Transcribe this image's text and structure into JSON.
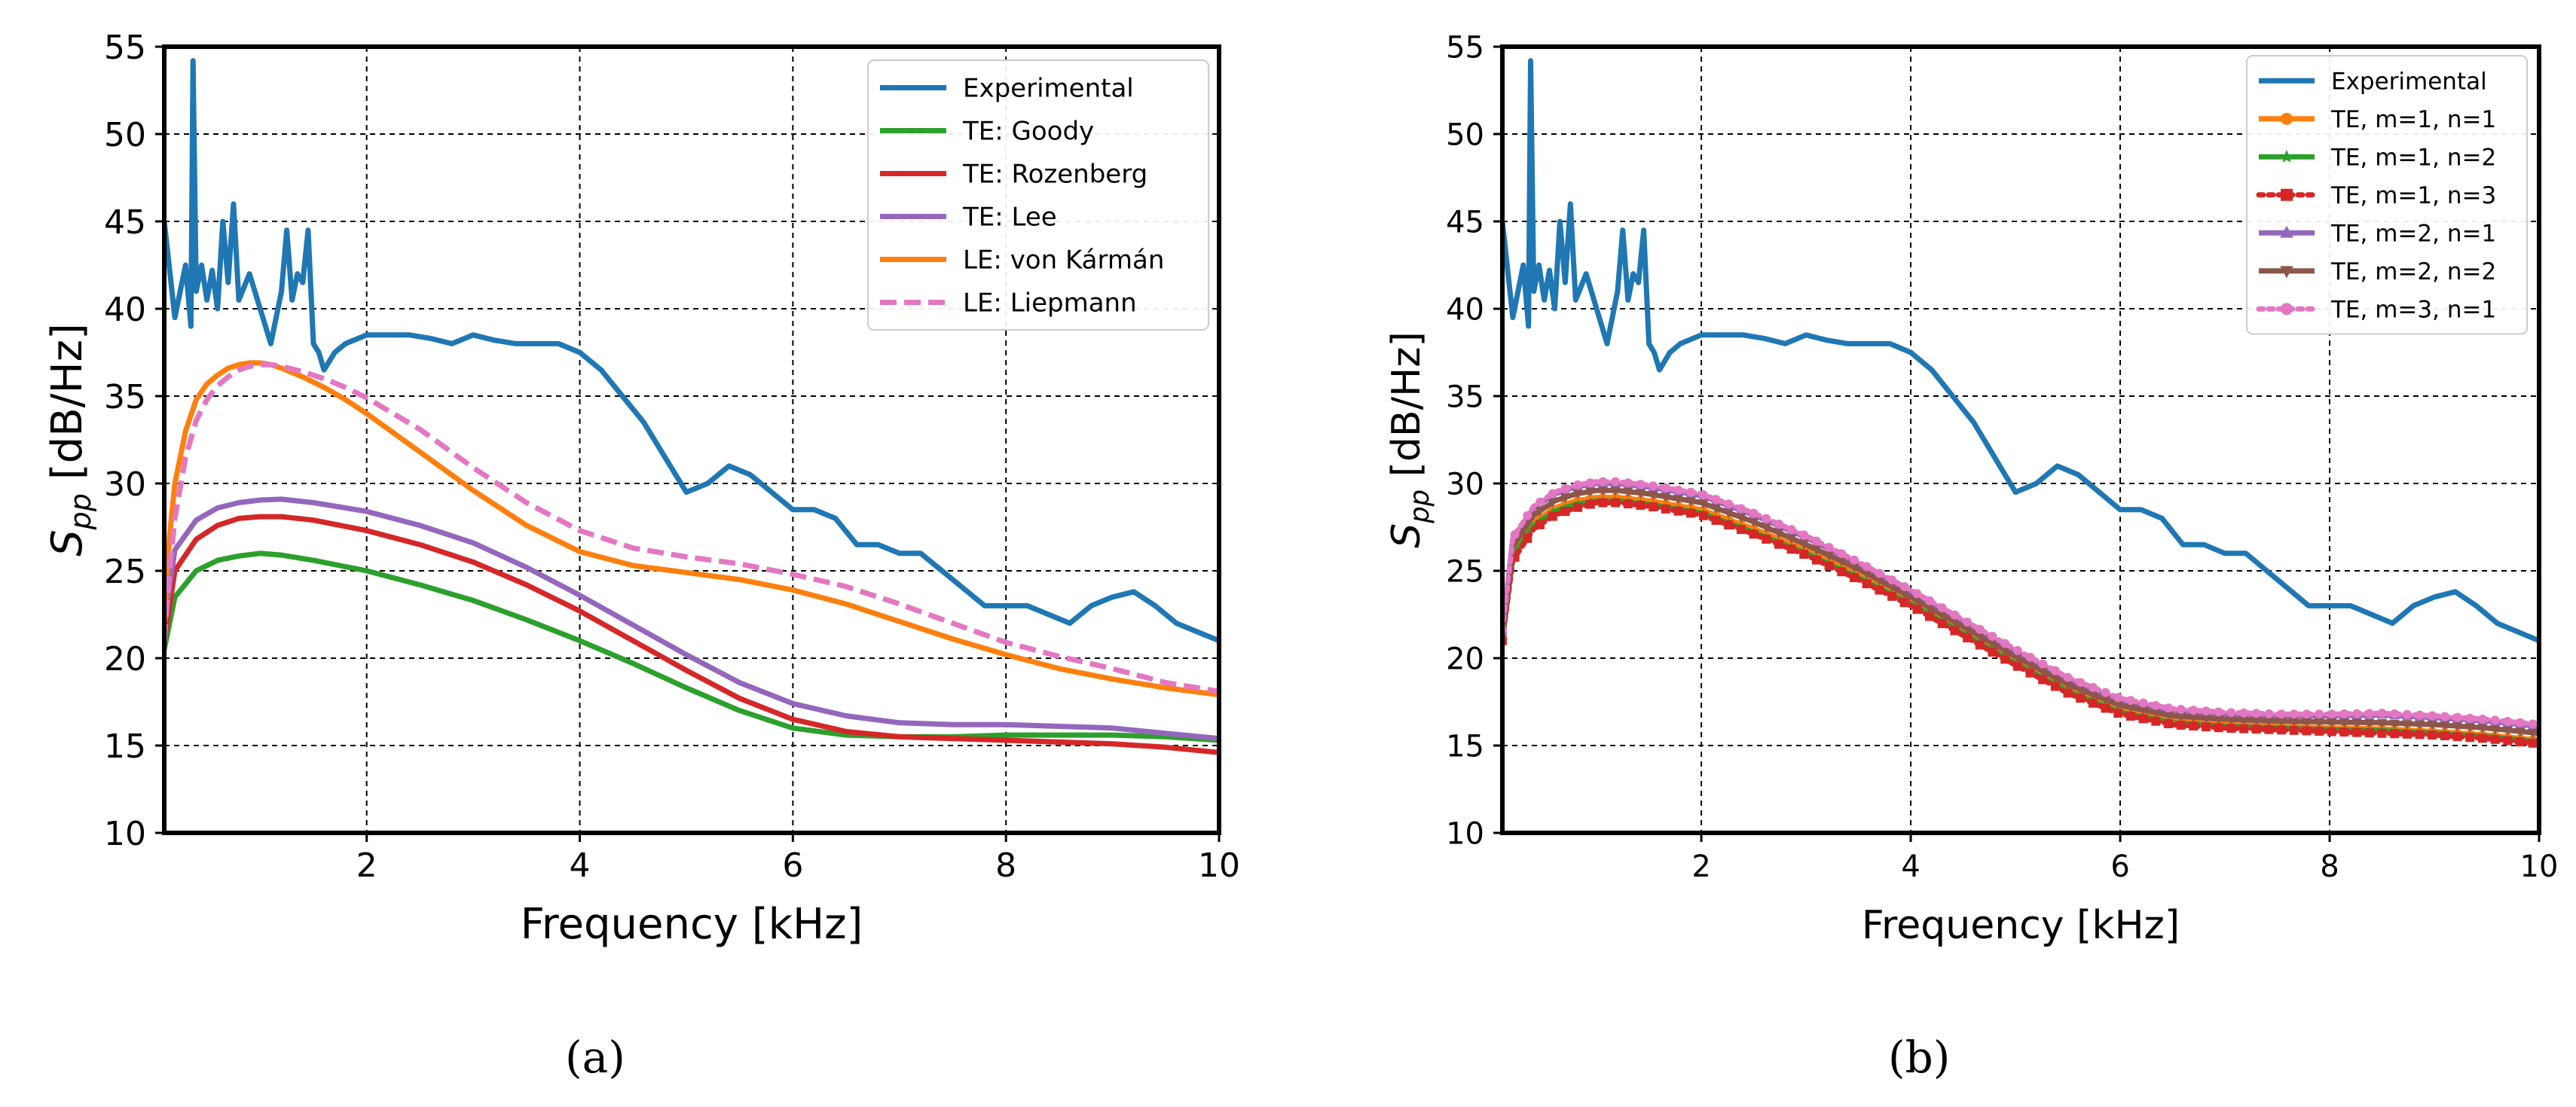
{
  "chart_data": [
    {
      "type": "line",
      "panel_label": "(a)",
      "xlabel": "Frequency [kHz]",
      "ylabel_main": "S",
      "ylabel_sub": "pp",
      "ylabel_units": "[dB/Hz]",
      "xlim": [
        0.1,
        10
      ],
      "ylim": [
        10,
        55
      ],
      "xticks": [
        2,
        4,
        6,
        8,
        10
      ],
      "yticks": [
        10,
        15,
        20,
        25,
        30,
        35,
        40,
        45,
        50,
        55
      ],
      "grid": true,
      "legend_position": "top-right",
      "series": [
        {
          "name": "Experimental",
          "color": "#1f77b4",
          "style": "solid",
          "marker": "none",
          "x": [
            0.1,
            0.2,
            0.25,
            0.3,
            0.35,
            0.37,
            0.4,
            0.45,
            0.5,
            0.55,
            0.6,
            0.65,
            0.7,
            0.75,
            0.8,
            0.9,
            1.0,
            1.1,
            1.2,
            1.25,
            1.3,
            1.35,
            1.4,
            1.45,
            1.5,
            1.55,
            1.6,
            1.7,
            1.8,
            2.0,
            2.2,
            2.4,
            2.6,
            2.8,
            3.0,
            3.2,
            3.4,
            3.6,
            3.8,
            4.0,
            4.2,
            4.4,
            4.6,
            4.8,
            5.0,
            5.2,
            5.4,
            5.6,
            5.8,
            6.0,
            6.2,
            6.4,
            6.6,
            6.8,
            7.0,
            7.2,
            7.4,
            7.6,
            7.8,
            8.0,
            8.2,
            8.4,
            8.6,
            8.8,
            9.0,
            9.2,
            9.4,
            9.6,
            9.8,
            10.0
          ],
          "y": [
            45,
            39.5,
            41,
            42.5,
            39,
            54.2,
            41,
            42.5,
            40.5,
            42.2,
            40,
            45,
            41.5,
            46,
            40.5,
            42,
            40,
            38,
            41,
            44.5,
            40.5,
            42,
            41.5,
            44.5,
            38,
            37.5,
            36.5,
            37.5,
            38,
            38.5,
            38.5,
            38.5,
            38.3,
            38,
            38.5,
            38.2,
            38,
            38,
            38,
            37.5,
            36.5,
            35,
            33.5,
            31.5,
            29.5,
            30,
            31,
            30.5,
            29.5,
            28.5,
            28.5,
            28,
            26.5,
            26.5,
            26,
            26,
            25,
            24,
            23,
            23,
            23,
            22.5,
            22,
            23,
            23.5,
            23.8,
            23,
            22,
            21.5,
            21
          ]
        },
        {
          "name": "TE: Goody",
          "color": "#2ca02c",
          "style": "solid",
          "marker": "none",
          "x": [
            0.1,
            0.2,
            0.4,
            0.6,
            0.8,
            1.0,
            1.2,
            1.5,
            2.0,
            2.5,
            3.0,
            3.5,
            4.0,
            4.5,
            5.0,
            5.5,
            6.0,
            6.5,
            7.0,
            7.5,
            8.0,
            8.5,
            9.0,
            9.5,
            10.0
          ],
          "y": [
            20.5,
            23.5,
            25,
            25.6,
            25.85,
            26,
            25.9,
            25.6,
            25,
            24.2,
            23.3,
            22.2,
            21,
            19.7,
            18.3,
            17,
            16,
            15.6,
            15.5,
            15.5,
            15.6,
            15.6,
            15.6,
            15.5,
            15.3
          ]
        },
        {
          "name": "TE: Rozenberg",
          "color": "#d62728",
          "style": "solid",
          "marker": "none",
          "x": [
            0.1,
            0.2,
            0.4,
            0.6,
            0.8,
            1.0,
            1.2,
            1.5,
            2.0,
            2.5,
            3.0,
            3.5,
            4.0,
            4.5,
            5.0,
            5.5,
            6.0,
            6.5,
            7.0,
            7.5,
            8.0,
            8.5,
            9.0,
            9.5,
            10.0
          ],
          "y": [
            21,
            25,
            26.8,
            27.6,
            28,
            28.1,
            28.1,
            27.9,
            27.3,
            26.5,
            25.5,
            24.2,
            22.7,
            21,
            19.3,
            17.7,
            16.5,
            15.8,
            15.5,
            15.4,
            15.3,
            15.2,
            15.1,
            14.9,
            14.6
          ]
        },
        {
          "name": "TE: Lee",
          "color": "#9467bd",
          "style": "solid",
          "marker": "none",
          "x": [
            0.1,
            0.2,
            0.4,
            0.6,
            0.8,
            1.0,
            1.2,
            1.5,
            2.0,
            2.5,
            3.0,
            3.5,
            4.0,
            4.5,
            5.0,
            5.5,
            6.0,
            6.5,
            7.0,
            7.5,
            8.0,
            8.5,
            9.0,
            9.5,
            10.0
          ],
          "y": [
            22,
            26.2,
            27.9,
            28.6,
            28.9,
            29.05,
            29.1,
            28.9,
            28.4,
            27.6,
            26.6,
            25.2,
            23.6,
            21.9,
            20.2,
            18.6,
            17.4,
            16.7,
            16.3,
            16.2,
            16.2,
            16.1,
            16,
            15.7,
            15.4
          ]
        },
        {
          "name": "LE: von Kármán",
          "color": "#ff7f0e",
          "style": "solid",
          "marker": "none",
          "x": [
            0.1,
            0.15,
            0.2,
            0.3,
            0.4,
            0.5,
            0.6,
            0.7,
            0.8,
            0.9,
            1.0,
            1.1,
            1.2,
            1.4,
            1.6,
            1.8,
            2.0,
            2.5,
            3.0,
            3.5,
            4.0,
            4.5,
            5.0,
            5.5,
            6.0,
            6.5,
            7.0,
            7.5,
            8.0,
            8.5,
            9.0,
            9.5,
            10.0
          ],
          "y": [
            22,
            27,
            30,
            33,
            34.8,
            35.7,
            36.2,
            36.6,
            36.8,
            36.9,
            36.9,
            36.8,
            36.6,
            36.1,
            35.5,
            34.8,
            34,
            31.8,
            29.6,
            27.6,
            26.1,
            25.3,
            24.9,
            24.5,
            23.9,
            23.1,
            22.1,
            21.1,
            20.2,
            19.4,
            18.8,
            18.3,
            17.9
          ]
        },
        {
          "name": "LE: Liepmann",
          "color": "#e377c2",
          "style": "dashed",
          "marker": "none",
          "x": [
            0.1,
            0.15,
            0.2,
            0.3,
            0.4,
            0.5,
            0.6,
            0.7,
            0.8,
            0.9,
            1.0,
            1.1,
            1.2,
            1.4,
            1.6,
            1.8,
            2.0,
            2.5,
            3.0,
            3.5,
            4.0,
            4.5,
            5.0,
            5.5,
            6.0,
            6.5,
            7.0,
            7.5,
            8.0,
            8.5,
            9.0,
            9.5,
            10.0
          ],
          "y": [
            21,
            25,
            28,
            31.5,
            33.6,
            34.8,
            35.6,
            36.1,
            36.5,
            36.7,
            36.8,
            36.8,
            36.7,
            36.4,
            36,
            35.5,
            34.9,
            33.1,
            30.9,
            28.9,
            27.3,
            26.3,
            25.8,
            25.4,
            24.8,
            24.1,
            23.1,
            22,
            20.9,
            20.1,
            19.4,
            18.6,
            18.1
          ]
        }
      ]
    },
    {
      "type": "line",
      "panel_label": "(b)",
      "xlabel": "Frequency [kHz]",
      "ylabel_main": "S",
      "ylabel_sub": "pp",
      "ylabel_units": "[dB/Hz]",
      "xlim": [
        0.1,
        10
      ],
      "ylim": [
        10,
        55
      ],
      "xticks": [
        2,
        4,
        6,
        8,
        10
      ],
      "yticks": [
        10,
        15,
        20,
        25,
        30,
        35,
        40,
        45,
        50,
        55
      ],
      "grid": true,
      "legend_position": "top-right",
      "series": [
        {
          "name": "Experimental",
          "color": "#1f77b4",
          "style": "solid",
          "marker": "none",
          "x": [
            0.1,
            0.2,
            0.25,
            0.3,
            0.35,
            0.37,
            0.4,
            0.45,
            0.5,
            0.55,
            0.6,
            0.65,
            0.7,
            0.75,
            0.8,
            0.9,
            1.0,
            1.1,
            1.2,
            1.25,
            1.3,
            1.35,
            1.4,
            1.45,
            1.5,
            1.55,
            1.6,
            1.7,
            1.8,
            2.0,
            2.2,
            2.4,
            2.6,
            2.8,
            3.0,
            3.2,
            3.4,
            3.6,
            3.8,
            4.0,
            4.2,
            4.4,
            4.6,
            4.8,
            5.0,
            5.2,
            5.4,
            5.6,
            5.8,
            6.0,
            6.2,
            6.4,
            6.6,
            6.8,
            7.0,
            7.2,
            7.4,
            7.6,
            7.8,
            8.0,
            8.2,
            8.4,
            8.6,
            8.8,
            9.0,
            9.2,
            9.4,
            9.6,
            9.8,
            10.0
          ],
          "y": [
            45,
            39.5,
            41,
            42.5,
            39,
            54.2,
            41,
            42.5,
            40.5,
            42.2,
            40,
            45,
            41.5,
            46,
            40.5,
            42,
            40,
            38,
            41,
            44.5,
            40.5,
            42,
            41.5,
            44.5,
            38,
            37.5,
            36.5,
            37.5,
            38,
            38.5,
            38.5,
            38.5,
            38.3,
            38,
            38.5,
            38.2,
            38,
            38,
            38,
            37.5,
            36.5,
            35,
            33.5,
            31.5,
            29.5,
            30,
            31,
            30.5,
            29.5,
            28.5,
            28.5,
            28,
            26.5,
            26.5,
            26,
            26,
            25,
            24,
            23,
            23,
            23,
            22.5,
            22,
            23,
            23.5,
            23.8,
            23,
            22,
            21.5,
            21
          ]
        },
        {
          "name": "TE, m=1, n=1",
          "color": "#ff7f0e",
          "style": "solid",
          "marker": "circle",
          "x": [
            0.1,
            0.2,
            0.4,
            0.6,
            0.8,
            1.0,
            1.2,
            1.5,
            2.0,
            2.5,
            3.0,
            3.5,
            4.0,
            4.5,
            5.0,
            5.5,
            6.0,
            6.5,
            7.0,
            7.5,
            8.0,
            8.5,
            9.0,
            9.5,
            10.0
          ],
          "y": [
            21,
            26,
            27.8,
            28.6,
            29,
            29.2,
            29.2,
            29,
            28.5,
            27.4,
            26.2,
            24.8,
            23.3,
            21.6,
            19.9,
            18.3,
            17.1,
            16.5,
            16.2,
            16.1,
            16,
            15.95,
            15.8,
            15.6,
            15.3
          ]
        },
        {
          "name": "TE, m=1, n=2",
          "color": "#2ca02c",
          "style": "solid",
          "marker": "star",
          "x": [
            0.1,
            0.2,
            0.4,
            0.6,
            0.8,
            1.0,
            1.2,
            1.5,
            2.0,
            2.5,
            3.0,
            3.5,
            4.0,
            4.5,
            5.0,
            5.5,
            6.0,
            6.5,
            7.0,
            7.5,
            8.0,
            8.5,
            9.0,
            9.5,
            10.0
          ],
          "y": [
            21,
            25.8,
            27.6,
            28.4,
            28.8,
            29,
            29,
            28.8,
            28.3,
            27.2,
            26,
            24.6,
            23.1,
            21.4,
            19.7,
            18.1,
            16.9,
            16.3,
            16.1,
            16,
            15.9,
            15.85,
            15.7,
            15.5,
            15.2
          ]
        },
        {
          "name": "TE, m=1, n=3",
          "color": "#d62728",
          "style": "dotted",
          "marker": "square",
          "x": [
            0.1,
            0.2,
            0.4,
            0.6,
            0.8,
            1.0,
            1.2,
            1.5,
            2.0,
            2.5,
            3.0,
            3.5,
            4.0,
            4.5,
            5.0,
            5.5,
            6.0,
            6.5,
            7.0,
            7.5,
            8.0,
            8.5,
            9.0,
            9.5,
            10.0
          ],
          "y": [
            21,
            25.6,
            27.4,
            28.2,
            28.6,
            28.9,
            28.9,
            28.7,
            28.2,
            27.1,
            25.9,
            24.5,
            23,
            21.3,
            19.6,
            18,
            16.8,
            16.2,
            16,
            15.9,
            15.8,
            15.7,
            15.6,
            15.4,
            15.1
          ]
        },
        {
          "name": "TE, m=2, n=1",
          "color": "#9467bd",
          "style": "solid",
          "marker": "triangle",
          "x": [
            0.1,
            0.2,
            0.4,
            0.6,
            0.8,
            1.0,
            1.2,
            1.5,
            2.0,
            2.5,
            3.0,
            3.5,
            4.0,
            4.5,
            5.0,
            5.5,
            6.0,
            6.5,
            7.0,
            7.5,
            8.0,
            8.5,
            9.0,
            9.5,
            10.0
          ],
          "y": [
            21.5,
            26.8,
            28.6,
            29.4,
            29.8,
            30,
            30,
            29.8,
            29.3,
            28.2,
            26.9,
            25.4,
            23.8,
            22.1,
            20.4,
            18.8,
            17.6,
            17,
            16.8,
            16.7,
            16.7,
            16.75,
            16.6,
            16.4,
            16.1
          ]
        },
        {
          "name": "TE, m=2, n=2",
          "color": "#8c564b",
          "style": "solid",
          "marker": "triangle-down",
          "x": [
            0.1,
            0.2,
            0.4,
            0.6,
            0.8,
            1.0,
            1.2,
            1.5,
            2.0,
            2.5,
            3.0,
            3.5,
            4.0,
            4.5,
            5.0,
            5.5,
            6.0,
            6.5,
            7.0,
            7.5,
            8.0,
            8.5,
            9.0,
            9.5,
            10.0
          ],
          "y": [
            21.3,
            26.4,
            28.2,
            29,
            29.4,
            29.6,
            29.6,
            29.4,
            28.9,
            27.8,
            26.5,
            25.1,
            23.5,
            21.8,
            20.1,
            18.5,
            17.3,
            16.7,
            16.5,
            16.4,
            16.35,
            16.3,
            16.2,
            16,
            15.7
          ]
        },
        {
          "name": "TE, m=3, n=1",
          "color": "#e377c2",
          "style": "dotted",
          "marker": "circle",
          "x": [
            0.1,
            0.2,
            0.4,
            0.6,
            0.8,
            1.0,
            1.2,
            1.5,
            2.0,
            2.5,
            3.0,
            3.5,
            4.0,
            4.5,
            5.0,
            5.5,
            6.0,
            6.5,
            7.0,
            7.5,
            8.0,
            8.5,
            9.0,
            9.5,
            10.0
          ],
          "y": [
            21.6,
            26.9,
            28.7,
            29.5,
            29.9,
            30.1,
            30.1,
            29.9,
            29.4,
            28.3,
            27,
            25.5,
            23.9,
            22.2,
            20.5,
            18.9,
            17.7,
            17.1,
            16.9,
            16.8,
            16.8,
            16.85,
            16.7,
            16.5,
            16.2
          ]
        }
      ]
    }
  ]
}
